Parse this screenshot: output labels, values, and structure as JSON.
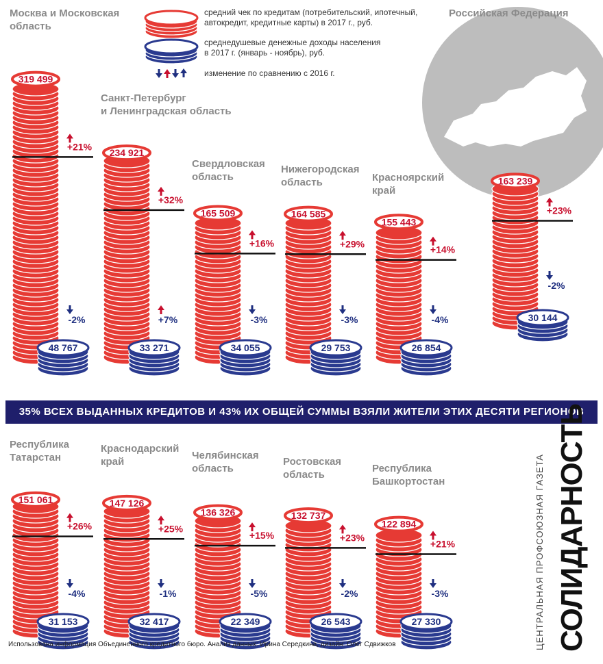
{
  "legend": {
    "credit_label": "средний чек по кредитам (потребительский, ипотечный,\nавтокредит, кредитные карты) в 2017 г., руб.",
    "income_label": "среднедушевые денежные доходы населения\nв 2017 г. (январь - ноябрь), руб.",
    "change_label": "изменение по сравнению с 2016 г.",
    "credit_color": "#e63a34",
    "income_color": "#2a3a8f",
    "up_arrow_color": "#c8102e",
    "down_arrow_color": "#1f2f80"
  },
  "russia_label": "Российская Федерация",
  "banner_text": "35% ВСЕХ ВЫДАННЫХ КРЕДИТОВ И 43% ИХ ОБЩЕЙ СУММЫ ВЗЯЛИ ЖИТЕЛИ ЭТИХ ДЕСЯТИ РЕГИОНОВ",
  "footer_text": "Использована информация Объединенного кредитного бюро. Анализ данных: Ирина Середкина, дизайн: Олег Сдвижков",
  "brand": {
    "name": "СОЛИДАРНОСТЬ",
    "tagline": "ЦЕНТРАЛЬНАЯ ПРОФСОЮЗНАЯ ГАЗЕТА"
  },
  "chart_data": {
    "type": "bar",
    "unit": "руб.",
    "regions": [
      {
        "name": "Москва и Московская\nобласть",
        "credit": 319499,
        "credit_label": "319 499",
        "credit_change": "+21%",
        "credit_dir": "up",
        "income": 48767,
        "income_label": "48 767",
        "income_change": "-2%",
        "income_dir": "down"
      },
      {
        "name": "Санкт-Петербург\nи Ленинградская область",
        "credit": 234921,
        "credit_label": "234 921",
        "credit_change": "+32%",
        "credit_dir": "up",
        "income": 33271,
        "income_label": "33 271",
        "income_change": "+7%",
        "income_dir": "up"
      },
      {
        "name": "Свердловская\nобласть",
        "credit": 165509,
        "credit_label": "165 509",
        "credit_change": "+16%",
        "credit_dir": "up",
        "income": 34055,
        "income_label": "34 055",
        "income_change": "-3%",
        "income_dir": "down"
      },
      {
        "name": "Нижегородская\nобласть",
        "credit": 164585,
        "credit_label": "164 585",
        "credit_change": "+29%",
        "credit_dir": "up",
        "income": 29753,
        "income_label": "29 753",
        "income_change": "-3%",
        "income_dir": "down"
      },
      {
        "name": "Красноярский\nкрай",
        "credit": 155443,
        "credit_label": "155 443",
        "credit_change": "+14%",
        "credit_dir": "up",
        "income": 26854,
        "income_label": "26 854",
        "income_change": "-4%",
        "income_dir": "down"
      },
      {
        "name": "Российская Федерация",
        "credit": 163239,
        "credit_label": "163 239",
        "credit_change": "+23%",
        "credit_dir": "up",
        "income": 30144,
        "income_label": "30 144",
        "income_change": "-2%",
        "income_dir": "down"
      },
      {
        "name": "Республика\nТатарстан",
        "credit": 151061,
        "credit_label": "151 061",
        "credit_change": "+26%",
        "credit_dir": "up",
        "income": 31153,
        "income_label": "31 153",
        "income_change": "-4%",
        "income_dir": "down"
      },
      {
        "name": "Краснодарский\nкрай",
        "credit": 147126,
        "credit_label": "147 126",
        "credit_change": "+25%",
        "credit_dir": "up",
        "income": 32417,
        "income_label": "32 417",
        "income_change": "-1%",
        "income_dir": "down"
      },
      {
        "name": "Челябинская\nобласть",
        "credit": 136326,
        "credit_label": "136 326",
        "credit_change": "+15%",
        "credit_dir": "up",
        "income": 22349,
        "income_label": "22 349",
        "income_change": "-5%",
        "income_dir": "down"
      },
      {
        "name": "Ростовская\nобласть",
        "credit": 132737,
        "credit_label": "132 737",
        "credit_change": "+23%",
        "credit_dir": "up",
        "income": 26543,
        "income_label": "26 543",
        "income_change": "-2%",
        "income_dir": "down"
      },
      {
        "name": "Республика\nБашкортостан",
        "credit": 122894,
        "credit_label": "122 894",
        "credit_change": "+21%",
        "credit_dir": "up",
        "income": 27330,
        "income_label": "27 330",
        "income_change": "-3%",
        "income_dir": "down"
      }
    ]
  }
}
